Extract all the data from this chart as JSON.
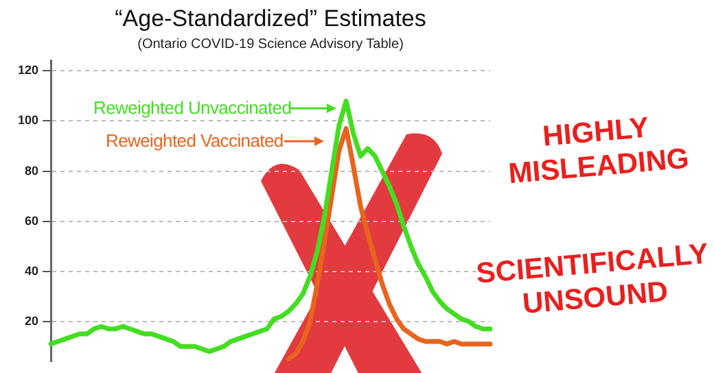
{
  "chart_data": {
    "type": "line",
    "title": "“Age-Standardized” Estimates",
    "subtitle": "(Ontario COVID-19 Science Advisory Table)",
    "categories": [
      null,
      null,
      null,
      null,
      null,
      null,
      null,
      null,
      null,
      null,
      null,
      null,
      null,
      null,
      null,
      null,
      null,
      null,
      null,
      null,
      null,
      null,
      null,
      null,
      null,
      null,
      null,
      null,
      null,
      null,
      null,
      null,
      null,
      null,
      null,
      null,
      null,
      null,
      null,
      null,
      null,
      null,
      null,
      null,
      null,
      null,
      null,
      null,
      null,
      null,
      null,
      null,
      null,
      null,
      null,
      null,
      null,
      null,
      null,
      null,
      null,
      null
    ],
    "series": [
      {
        "name": "Reweighted Unvaccinated",
        "color": "#44dd22",
        "values": [
          11,
          12,
          13,
          14,
          15,
          15,
          17,
          18,
          17,
          17,
          18,
          17,
          16,
          15,
          15,
          14,
          13,
          12,
          10,
          10,
          10,
          9,
          8,
          9,
          10,
          12,
          13,
          14,
          15,
          16,
          17,
          21,
          22,
          24,
          27,
          31,
          38,
          48,
          62,
          80,
          98,
          108,
          95,
          86,
          89,
          86,
          80,
          74,
          67,
          58,
          50,
          43,
          38,
          32,
          28,
          25,
          23,
          21,
          20,
          18,
          17,
          17
        ]
      },
      {
        "name": "Reweighted Vaccinated",
        "color": "#e8641e",
        "values": [
          null,
          null,
          null,
          null,
          null,
          null,
          null,
          null,
          null,
          null,
          null,
          null,
          null,
          null,
          null,
          null,
          null,
          null,
          null,
          null,
          null,
          null,
          null,
          null,
          null,
          null,
          null,
          null,
          null,
          null,
          null,
          null,
          null,
          5,
          7,
          12,
          20,
          35,
          52,
          70,
          88,
          97,
          82,
          66,
          55,
          45,
          35,
          27,
          21,
          17,
          15,
          13,
          12,
          12,
          12,
          11,
          12,
          11,
          11,
          11,
          11,
          11
        ]
      }
    ],
    "ylim": [
      4,
      124
    ],
    "yticks": [
      20,
      40,
      60,
      80,
      100,
      120
    ],
    "grid": "y",
    "tick_labels": "y",
    "marker": "none",
    "line_style": "solid",
    "legend": "top left",
    "annotations": [
      "HIGHLY MISLEADING",
      "SCIENTIFICALLY UNSOUND"
    ]
  }
}
